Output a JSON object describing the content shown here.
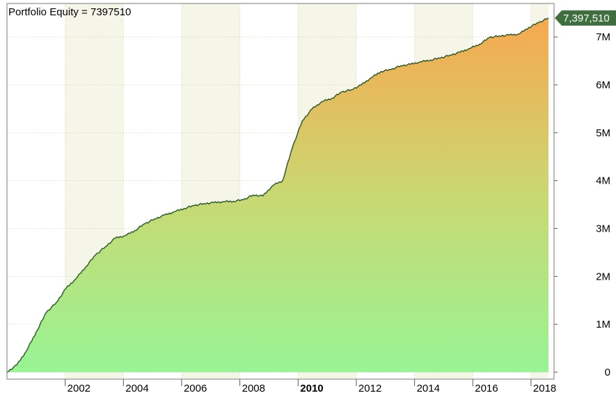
{
  "chart_data": {
    "type": "area",
    "title": "Portfolio Equity = 7397510",
    "last_value_label": "7,397,510",
    "xlabel": "",
    "ylabel": "",
    "x_start": 2000.0,
    "x_end": 2018.6,
    "xlim": [
      2000.0,
      2018.6
    ],
    "ylim": [
      0,
      7700000
    ],
    "x_ticks": [
      {
        "value": 2002,
        "label": "2002",
        "bold": false
      },
      {
        "value": 2004,
        "label": "2004",
        "bold": false
      },
      {
        "value": 2006,
        "label": "2006",
        "bold": false
      },
      {
        "value": 2008,
        "label": "2008",
        "bold": false
      },
      {
        "value": 2010,
        "label": "2010",
        "bold": true
      },
      {
        "value": 2012,
        "label": "2012",
        "bold": false
      },
      {
        "value": 2014,
        "label": "2014",
        "bold": false
      },
      {
        "value": 2016,
        "label": "2016",
        "bold": false
      },
      {
        "value": 2018,
        "label": "2018",
        "bold": false
      }
    ],
    "y_ticks": [
      {
        "value": 0,
        "label": "0"
      },
      {
        "value": 1000000,
        "label": "1M"
      },
      {
        "value": 2000000,
        "label": "2M"
      },
      {
        "value": 3000000,
        "label": "3M"
      },
      {
        "value": 4000000,
        "label": "4M"
      },
      {
        "value": 5000000,
        "label": "5M"
      },
      {
        "value": 6000000,
        "label": "6M"
      },
      {
        "value": 7000000,
        "label": "7M"
      }
    ],
    "series": [
      {
        "values": [
          0,
          150000,
          450000,
          850000,
          1250000,
          1450000,
          1750000,
          1950000,
          2200000,
          2450000,
          2620000,
          2800000,
          2850000,
          2960000,
          3100000,
          3200000,
          3280000,
          3350000,
          3420000,
          3480000,
          3520000,
          3540000,
          3560000,
          3570000,
          3600000,
          3700000,
          3680000,
          3900000,
          4000000,
          4700000,
          5250000,
          5500000,
          5650000,
          5720000,
          5850000,
          5900000,
          6000000,
          6150000,
          6280000,
          6320000,
          6400000,
          6430000,
          6480000,
          6520000,
          6560000,
          6620000,
          6680000,
          6760000,
          6850000,
          6990000,
          7020000,
          7040000,
          7060000,
          7200000,
          7300000,
          7397510
        ]
      }
    ],
    "grid": true,
    "colors": {
      "line": "#2e5e2e",
      "fill_top": "#f7a84f",
      "fill_mid": "#c9d872",
      "fill_bottom": "#98f494",
      "band": "#f5f5e8",
      "grid": "#cfd8b0",
      "label_bg": "#3f6f3f",
      "label_text": "#ffffff",
      "axis_text": "#000000"
    }
  }
}
